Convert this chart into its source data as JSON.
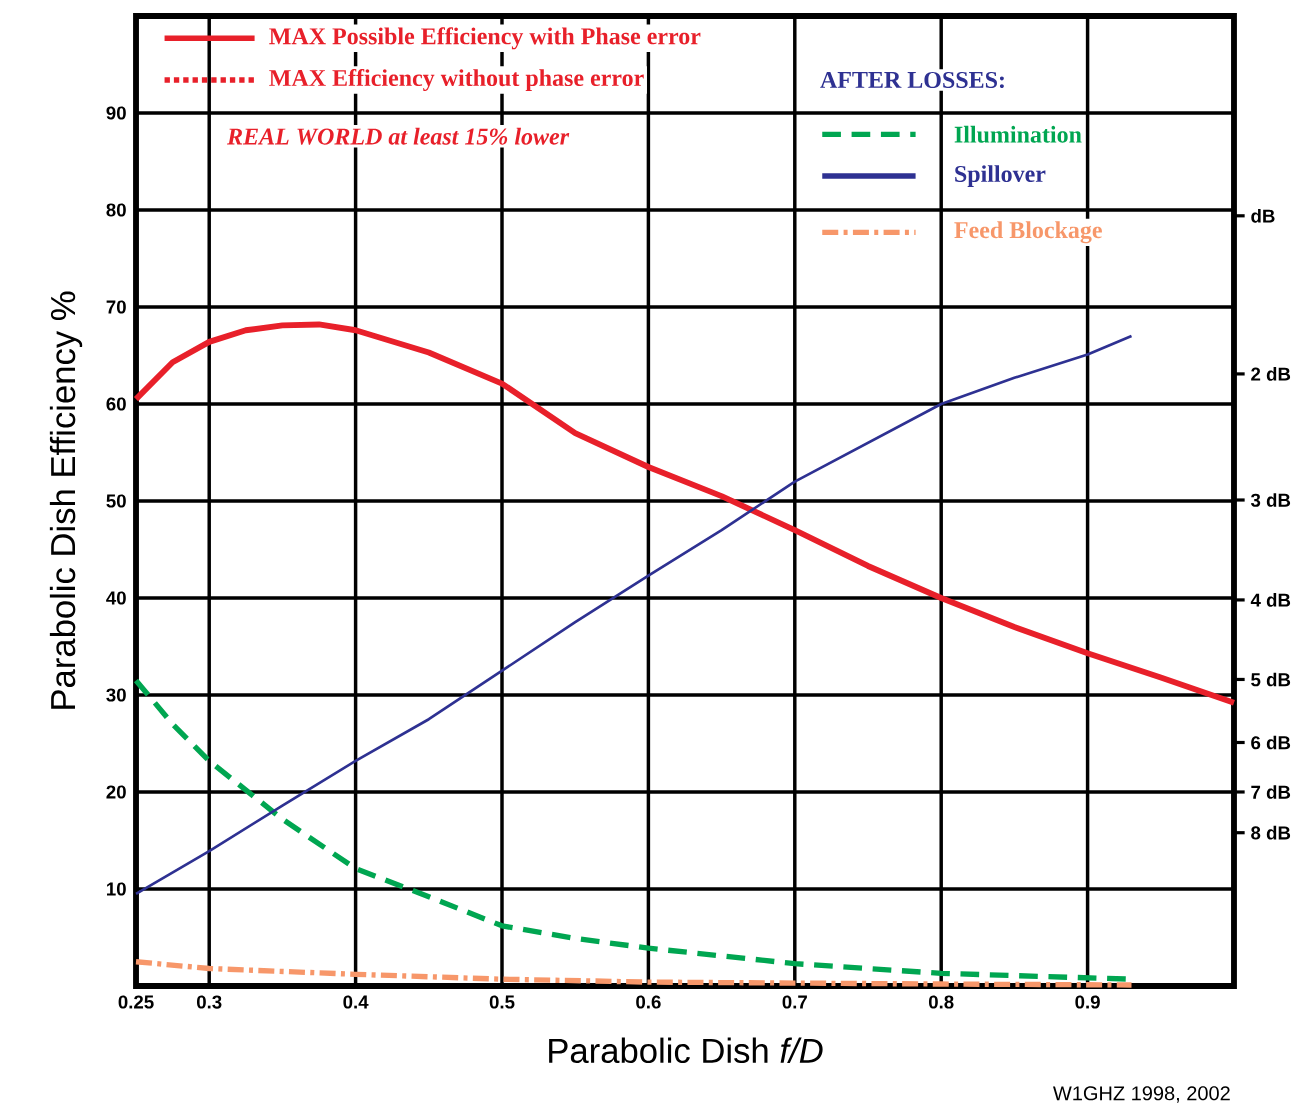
{
  "chart_data": {
    "type": "line",
    "xlabel": "Parabolic Dish *f/D*",
    "ylabel": "Parabolic Dish Efficiency %",
    "legend_title": "AFTER LOSSES:",
    "xlim": [
      0.25,
      1.0
    ],
    "xticks": [
      0.25,
      0.3,
      0.4,
      0.5,
      0.6,
      0.7,
      0.8,
      0.9
    ],
    "ylim": [
      0,
      100
    ],
    "yticks": [
      10,
      20,
      30,
      40,
      50,
      60,
      70,
      80,
      90
    ],
    "grid": true,
    "legend": "top",
    "series": [
      {
        "name": "MAX Possible Efficiency with Phase error",
        "color": "#e8202a",
        "line_style": "solid",
        "x": [
          0.25,
          0.275,
          0.3,
          0.325,
          0.35,
          0.375,
          0.4,
          0.45,
          0.5,
          0.55,
          0.6,
          0.65,
          0.7,
          0.75,
          0.8,
          0.85,
          0.9,
          0.95,
          1.0
        ],
        "values": [
          60.5,
          64.3,
          66.4,
          67.6,
          68.1,
          68.2,
          67.6,
          65.3,
          62.1,
          57,
          53.5,
          50.5,
          47,
          43.3,
          40,
          37,
          34.3,
          31.8,
          29.2
        ]
      },
      {
        "name": "MAX Efficiency without phase error",
        "color": "#e8202a",
        "line_style": "dotted"
      },
      {
        "name": "Illumination",
        "color": "#00a651",
        "line_style": "dashed",
        "x": [
          0.25,
          0.275,
          0.3,
          0.35,
          0.4,
          0.45,
          0.5,
          0.55,
          0.6,
          0.7,
          0.8,
          0.93
        ],
        "values": [
          31.5,
          27,
          23.2,
          17.2,
          12.1,
          9.2,
          6.2,
          4.9,
          3.9,
          2.3,
          1.3,
          0.7
        ]
      },
      {
        "name": "Spillover",
        "color": "#2e3192",
        "line_style": "solid",
        "x": [
          0.25,
          0.3,
          0.35,
          0.4,
          0.45,
          0.5,
          0.55,
          0.6,
          0.65,
          0.7,
          0.75,
          0.8,
          0.85,
          0.9,
          0.93
        ],
        "values": [
          9.5,
          13.9,
          18.6,
          23.2,
          27.5,
          32.5,
          37.5,
          42.3,
          47,
          52,
          56,
          60,
          62.7,
          65.1,
          67
        ]
      },
      {
        "name": "Feed Blockage",
        "color": "#f7976a",
        "line_style": "dashdot",
        "x": [
          0.25,
          0.3,
          0.4,
          0.5,
          0.6,
          0.7,
          0.8,
          0.93
        ],
        "values": [
          2.5,
          1.8,
          1.2,
          0.7,
          0.4,
          0.3,
          0.2,
          0.1
        ]
      }
    ],
    "ref_lines": [
      {
        "axis": "y",
        "value": 79.4,
        "label": "dB"
      },
      {
        "axis": "y",
        "value": 63.1,
        "label": "2 dB"
      },
      {
        "axis": "y",
        "value": 50.1,
        "label": "3 dB"
      },
      {
        "axis": "y",
        "value": 39.8,
        "label": "4 dB"
      },
      {
        "axis": "y",
        "value": 31.6,
        "label": "5 dB"
      },
      {
        "axis": "y",
        "value": 25.1,
        "label": "6 dB"
      },
      {
        "axis": "y",
        "value": 20.0,
        "label": "7 dB"
      },
      {
        "axis": "y",
        "value": 15.8,
        "label": "8 dB"
      }
    ],
    "annotations": [
      "REAL WORLD at least 15% lower",
      "W1GHZ 1998, 2002"
    ]
  }
}
